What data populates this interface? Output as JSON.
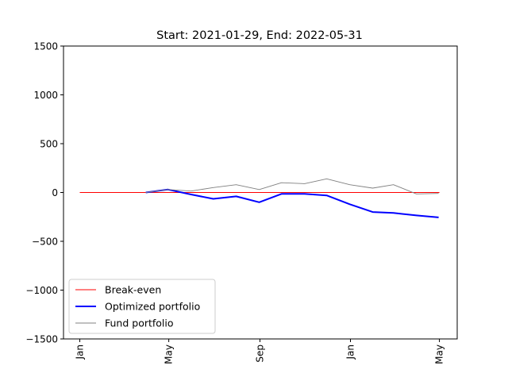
{
  "chart_data": {
    "type": "line",
    "title": "Start: 2021-01-29, End: 2022-05-31",
    "xlabel": "",
    "ylabel": "",
    "x_ticks": [
      "Jan",
      "May",
      "Sep",
      "Jan",
      "May"
    ],
    "x_tick_dates": [
      "2021-01-01",
      "2021-05-01",
      "2021-09-01",
      "2022-01-01",
      "2022-05-01"
    ],
    "xlim": [
      "2020-12-10",
      "2022-05-25"
    ],
    "y_ticks": [
      "1500",
      "1000",
      "500",
      "0",
      "−500",
      "−1000",
      "−1500"
    ],
    "y_tick_values": [
      1500,
      1000,
      500,
      0,
      -500,
      -1000,
      -1500
    ],
    "ylim": [
      -1500,
      1500
    ],
    "grid": false,
    "legend_position": "lower-left",
    "series": [
      {
        "name": "Break-even",
        "color": "#ff0000",
        "style": "thin",
        "points": [
          [
            "2021-01-01",
            0
          ],
          [
            "2022-05-01",
            0
          ]
        ]
      },
      {
        "name": "Optimized portfolio",
        "color": "#0000ff",
        "style": "thick",
        "points": [
          [
            "2021-03-31",
            0
          ],
          [
            "2021-04-30",
            30
          ],
          [
            "2021-05-31",
            -20
          ],
          [
            "2021-06-30",
            -65
          ],
          [
            "2021-07-31",
            -40
          ],
          [
            "2021-08-31",
            -100
          ],
          [
            "2021-09-30",
            -15
          ],
          [
            "2021-10-31",
            -15
          ],
          [
            "2021-11-30",
            -30
          ],
          [
            "2021-12-31",
            -120
          ],
          [
            "2022-01-31",
            -200
          ],
          [
            "2022-02-28",
            -210
          ],
          [
            "2022-03-31",
            -235
          ],
          [
            "2022-04-30",
            -255
          ]
        ]
      },
      {
        "name": "Fund portfolio",
        "color": "#808080",
        "style": "thin",
        "points": [
          [
            "2021-03-31",
            0
          ],
          [
            "2021-04-30",
            30
          ],
          [
            "2021-05-31",
            15
          ],
          [
            "2021-06-30",
            50
          ],
          [
            "2021-07-31",
            80
          ],
          [
            "2021-08-31",
            30
          ],
          [
            "2021-09-30",
            100
          ],
          [
            "2021-10-31",
            90
          ],
          [
            "2021-11-30",
            140
          ],
          [
            "2021-12-31",
            80
          ],
          [
            "2022-01-31",
            45
          ],
          [
            "2022-02-28",
            80
          ],
          [
            "2022-03-31",
            -15
          ],
          [
            "2022-04-30",
            -10
          ]
        ]
      }
    ]
  }
}
